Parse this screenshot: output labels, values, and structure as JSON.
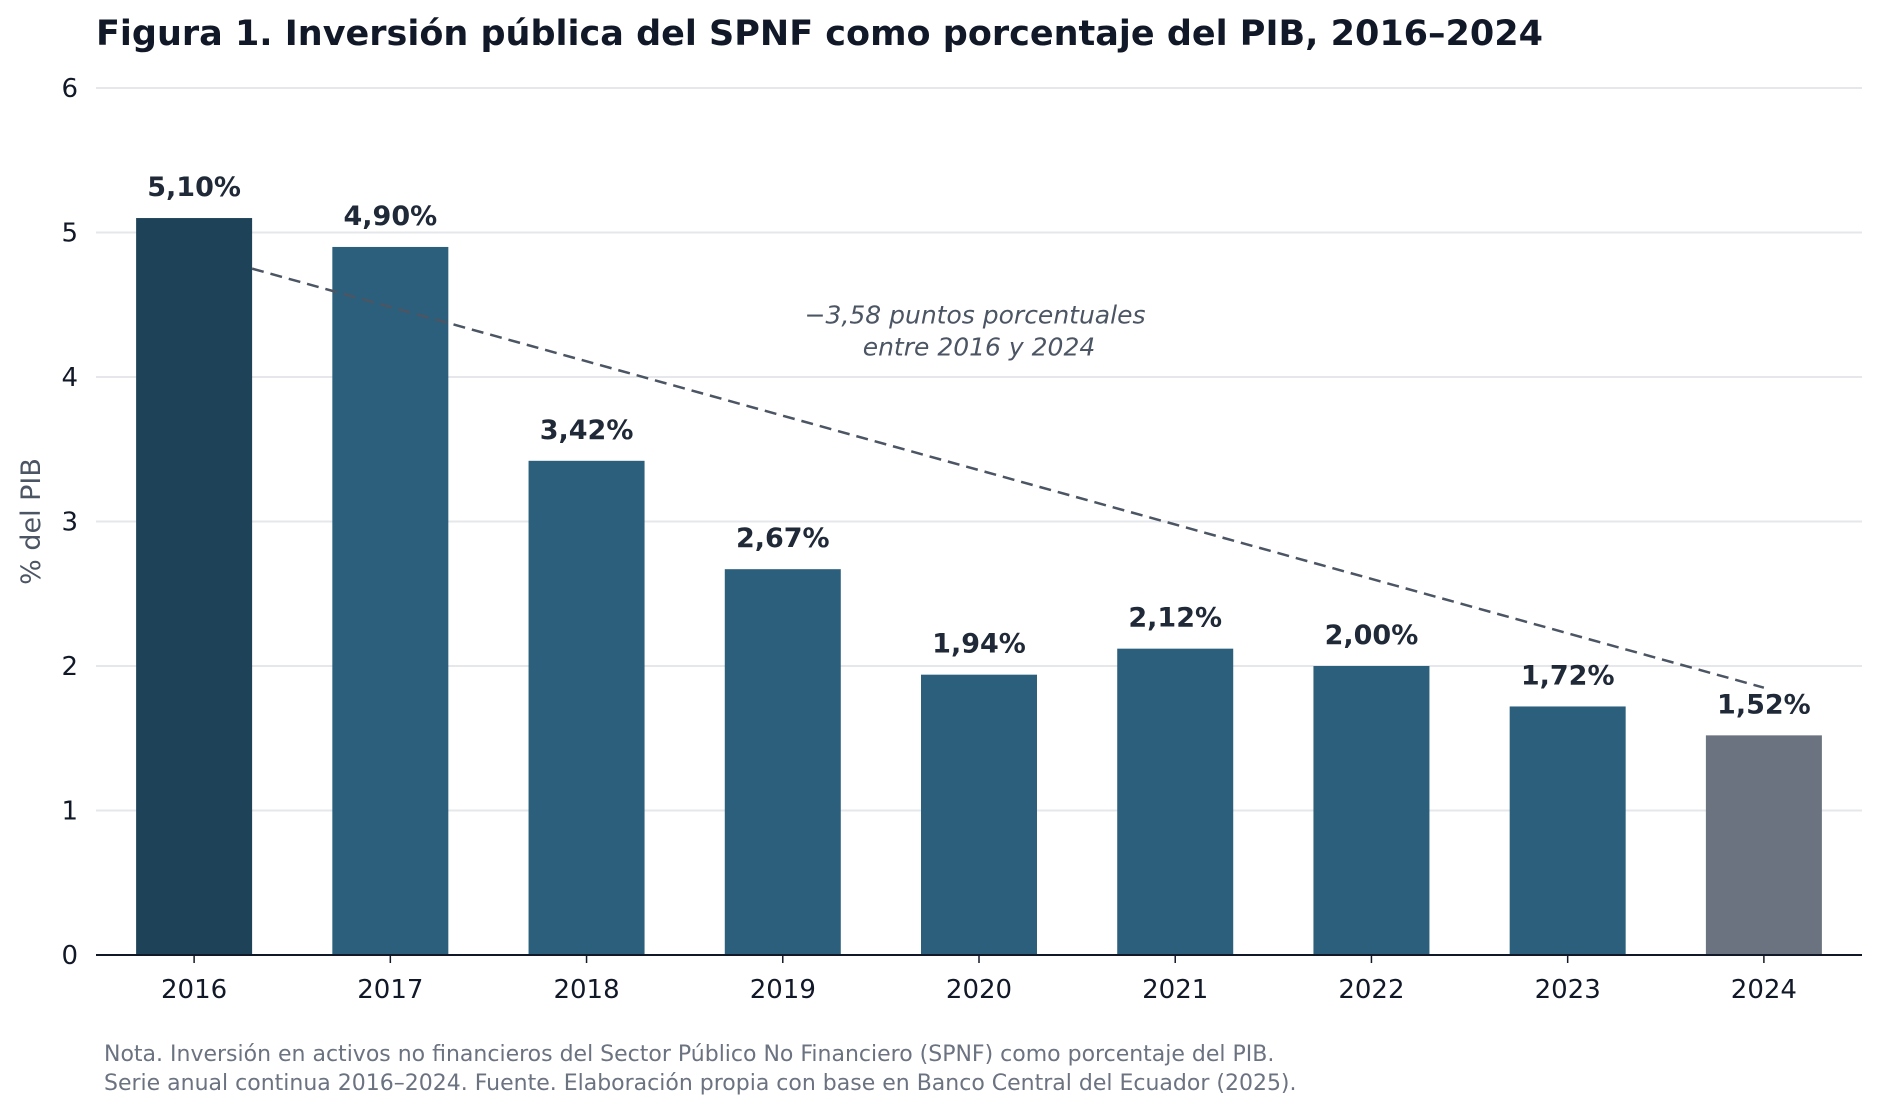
{
  "chart_data": {
    "type": "bar",
    "title": "Figura 1. Inversión pública del SPNF como porcentaje del PIB, 2016–2024",
    "ylabel": "% del PIB",
    "xlabel": "",
    "ylim": [
      0,
      6
    ],
    "yticks": [
      0,
      1,
      2,
      3,
      4,
      5,
      6
    ],
    "categories": [
      "2016",
      "2017",
      "2018",
      "2019",
      "2020",
      "2021",
      "2022",
      "2023",
      "2024"
    ],
    "values": [
      5.1,
      4.9,
      3.42,
      2.67,
      1.94,
      2.12,
      2.0,
      1.72,
      1.52
    ],
    "value_labels": [
      "5,10%",
      "4,90%",
      "3,42%",
      "2,67%",
      "1,94%",
      "2,12%",
      "2,00%",
      "1,72%",
      "1,52%"
    ],
    "grid": true,
    "colors": {
      "first": "#1e4257",
      "default": "#2c5f7c",
      "last": "#6b7280",
      "trend": "#4b5563",
      "annotation": "#4b5563",
      "grid": "#e5e7eb",
      "axis": "#111827"
    },
    "trend_line": {
      "from": [
        "2016",
        4.75
      ],
      "to": [
        "2024",
        1.85
      ],
      "style": "dashed"
    },
    "annotation": {
      "lines": [
        "−3,58 puntos porcentuales",
        "entre 2016 y 2024"
      ],
      "anchor": [
        "2020",
        4.15
      ]
    }
  },
  "note": {
    "line1": "Nota. Inversión en activos no financieros del Sector Público No Financiero (SPNF) como porcentaje del PIB.",
    "line2": "Serie anual continua 2016–2024. Fuente. Elaboración propia con base en Banco Central del Ecuador (2025)."
  }
}
